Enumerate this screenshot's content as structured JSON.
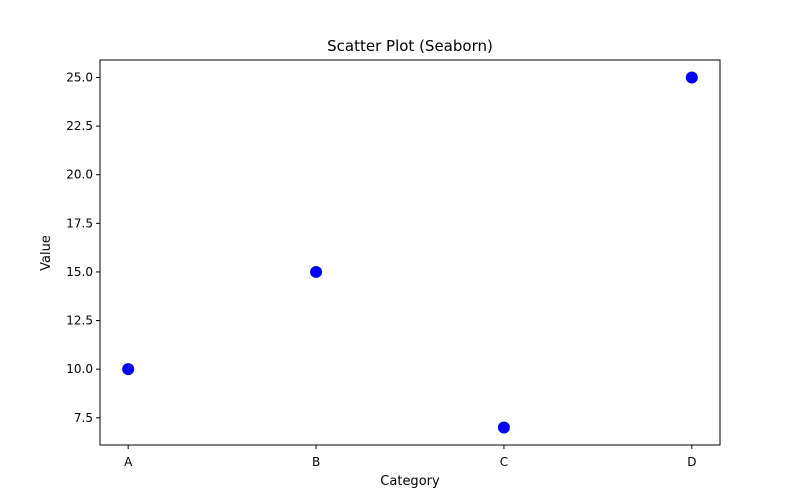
{
  "chart_data": {
    "type": "scatter",
    "title": "Scatter Plot (Seaborn)",
    "xlabel": "Category",
    "ylabel": "Value",
    "categories": [
      "A",
      "B",
      "C",
      "D"
    ],
    "series": [
      {
        "values": [
          10,
          15,
          7,
          25
        ],
        "color": "#0000ff"
      }
    ],
    "ylim": [
      6.1,
      25.9
    ],
    "yticks": [
      7.5,
      10.0,
      12.5,
      15.0,
      17.5,
      20.0,
      22.5,
      25.0
    ],
    "ytick_labels": [
      "7.5",
      "10.0",
      "12.5",
      "15.0",
      "17.5",
      "20.0",
      "22.5",
      "25.0"
    ],
    "grid": false,
    "legend": "none"
  }
}
